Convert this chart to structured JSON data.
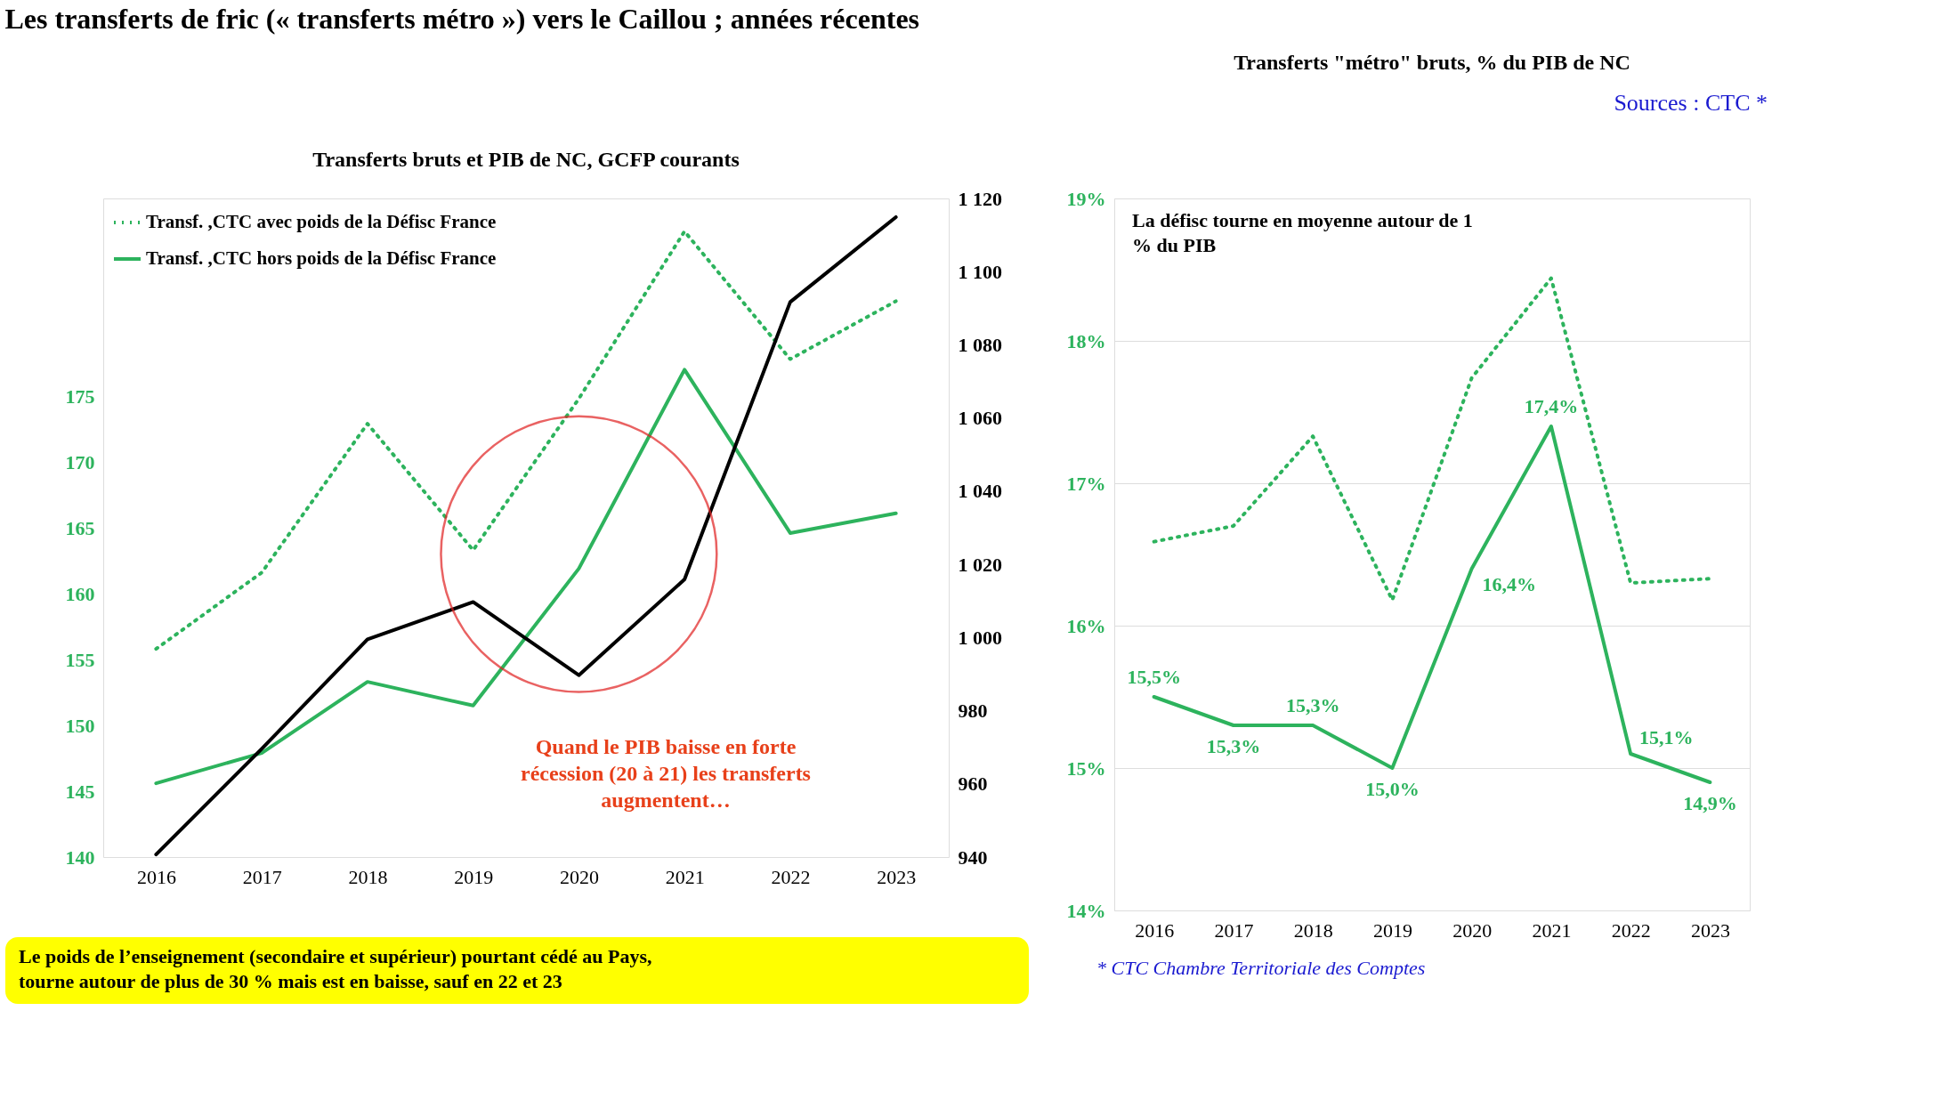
{
  "chart_data": [
    {
      "type": "line",
      "title": "Les transferts de fric (« transferts métro ») vers le Caillou ; années récentes",
      "subtitle": "Transferts bruts et PIB de NC, GCFP courants",
      "categories": [
        "2016",
        "2017",
        "2018",
        "2019",
        "2020",
        "2021",
        "2022",
        "2023"
      ],
      "series": [
        {
          "name": "Transf. ,CTC avec poids de la Défisc France",
          "color": "#2db35d",
          "line_style": "dotted",
          "values": [
            155.8,
            161.6,
            172.9,
            163.3,
            174.8,
            187.5,
            177.8,
            182.2
          ]
        },
        {
          "name": "Transf. ,CTC hors poids de la Défisc France",
          "color": "#2db35d",
          "line_style": "solid",
          "values": [
            145.6,
            147.9,
            153.3,
            151.5,
            161.9,
            177.0,
            164.6,
            166.1
          ]
        },
        {
          "color": "#000000",
          "line_style": "solid",
          "axis": "y2",
          "values": [
            940.7,
            969.6,
            999.5,
            1009.7,
            989.7,
            1015.9,
            1091.7,
            1114.9
          ]
        }
      ],
      "ylim": [
        140,
        190
      ],
      "yticks": [
        140,
        145,
        150,
        155,
        160,
        165,
        170,
        175
      ],
      "y2lim": [
        940,
        1120
      ],
      "y2ticks": [
        940,
        960,
        980,
        {
          "value": 1000,
          "label": "1 000"
        },
        {
          "value": 1020,
          "label": "1 020"
        },
        {
          "value": 1040,
          "label": "1 040"
        },
        {
          "value": 1060,
          "label": "1 060"
        },
        {
          "value": 1080,
          "label": "1 080"
        },
        {
          "value": 1100,
          "label": "1 100"
        },
        {
          "value": 1120,
          "label": "1 120"
        }
      ],
      "legend": "top left",
      "grid": false,
      "annotations": [
        "Quand le PIB baisse en forte récession (20 à 21) les transferts augmentent…",
        "Le poids de l’enseignement (secondaire et supérieur) pourtant cédé au Pays, tourne autour de plus de 30 % mais est en baisse, sauf en 22 et 23"
      ]
    },
    {
      "type": "line",
      "title": "Transferts \"métro\" bruts, % du PIB de NC",
      "categories": [
        "2016",
        "2017",
        "2018",
        "2019",
        "2020",
        "2021",
        "2022",
        "2023"
      ],
      "series": [
        {
          "color": "#2db35d",
          "line_style": "dotted",
          "values": [
            16.59,
            16.7,
            17.33,
            16.18,
            17.74,
            18.44,
            16.3,
            16.33
          ]
        },
        {
          "color": "#2db35d",
          "line_style": "solid",
          "values": [
            15.5,
            15.3,
            15.3,
            15.0,
            16.4,
            17.4,
            15.1,
            14.9
          ],
          "value_labels": [
            "15,5%",
            "15,3%",
            "15,3%",
            "15,0%",
            "16,4%",
            "17,4%",
            "15,1%",
            "14,9%"
          ]
        }
      ],
      "ylim": [
        14,
        19
      ],
      "yticks": [
        {
          "value": 14,
          "label": "14%"
        },
        {
          "value": 15,
          "label": "15%"
        },
        {
          "value": 16,
          "label": "16%"
        },
        {
          "value": 17,
          "label": "17%"
        },
        {
          "value": 18,
          "label": "18%"
        },
        {
          "value": 19,
          "label": "19%"
        }
      ],
      "grid": "y",
      "annotations": [
        "La défisc tourne en moyenne autour de 1 % du PIB",
        "Sources : CTC *",
        "* CTC Chambre Territoriale des Comptes"
      ]
    }
  ]
}
